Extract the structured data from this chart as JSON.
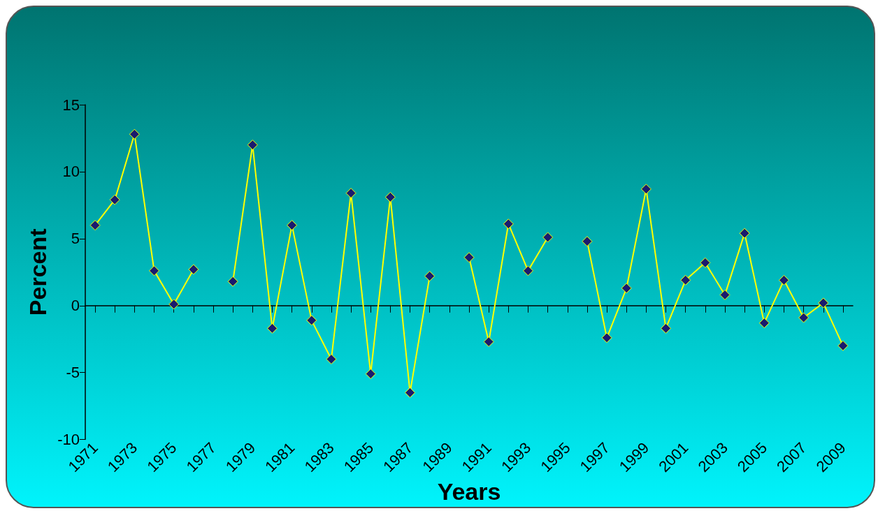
{
  "chart_data": {
    "type": "line",
    "xlabel": "Years",
    "ylabel": "Percent",
    "categories": [
      "1971",
      null,
      "1973",
      null,
      "1975",
      null,
      "1977",
      null,
      "1979",
      null,
      "1981",
      null,
      "1983",
      null,
      "1985",
      null,
      "1987",
      null,
      "1989",
      null,
      "1991",
      null,
      "1993",
      null,
      "1995",
      null,
      "1997",
      null,
      "1999",
      null,
      "2001",
      null,
      "2003",
      null,
      "2005",
      null,
      "2007",
      null,
      "2009"
    ],
    "series": [
      {
        "color": "#ffff00",
        "values": [
          6.0,
          7.9,
          12.8,
          2.6,
          0.1,
          2.7,
          null,
          1.8,
          12.0,
          -1.7,
          6.0,
          -1.1,
          -4.0,
          8.4,
          -5.1,
          8.1,
          -6.5,
          2.2,
          null,
          3.6,
          -2.7,
          6.1,
          2.6,
          5.1,
          null,
          4.8,
          -2.4,
          1.3,
          8.7,
          -1.7,
          1.9,
          3.2,
          0.8,
          5.4,
          -1.3,
          1.9,
          -0.9,
          0.2,
          -3.0
        ]
      }
    ],
    "marker": "diamond",
    "line_style": "solid",
    "ylim": [
      -10,
      15
    ],
    "yticks": [
      -10,
      -5,
      0,
      5,
      10,
      15
    ]
  }
}
